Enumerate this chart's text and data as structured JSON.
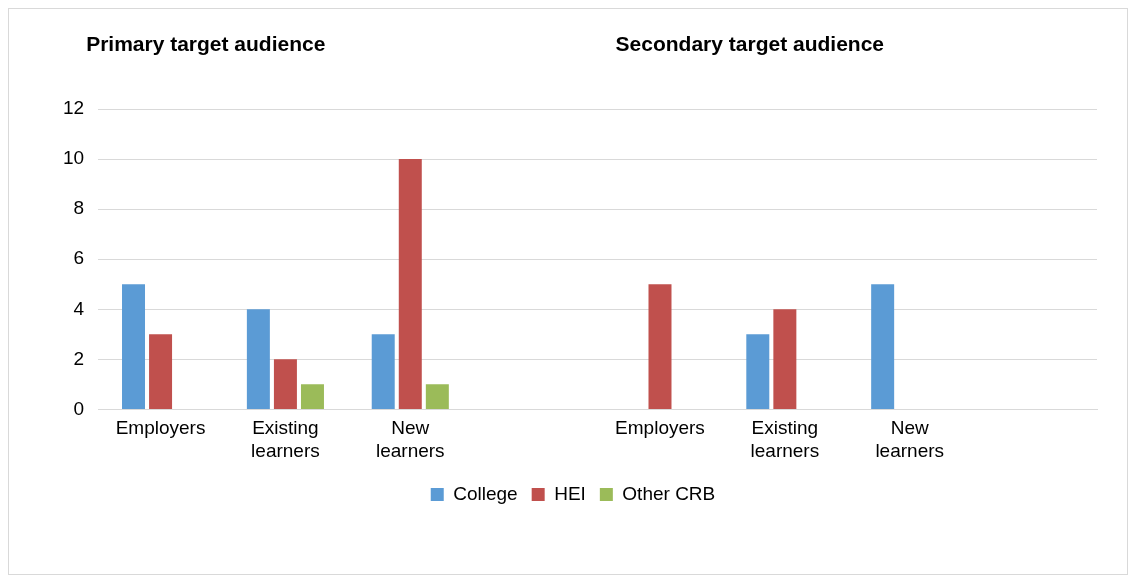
{
  "chart_data": {
    "type": "bar",
    "annotations": [
      "Primary target audience",
      "Secondary target audience"
    ],
    "categories": [
      "Employers",
      "Existing learners",
      "New learners",
      null,
      "Employers",
      "Existing learners",
      "New learners",
      null
    ],
    "series": [
      {
        "name": "College",
        "color": "#5b9bd5",
        "values": [
          5,
          4,
          3,
          null,
          null,
          3,
          5,
          null
        ]
      },
      {
        "name": "HEI",
        "color": "#c0504d",
        "values": [
          3,
          2,
          10,
          null,
          5,
          4,
          null,
          null
        ]
      },
      {
        "name": "Other CRB",
        "color": "#9bbb59",
        "values": [
          null,
          1,
          1,
          null,
          null,
          null,
          null,
          null
        ]
      }
    ],
    "ylim": [
      0,
      12
    ],
    "yticks": [
      0,
      2,
      4,
      6,
      8,
      10,
      12
    ],
    "grid": "y",
    "legend": "bottom"
  }
}
